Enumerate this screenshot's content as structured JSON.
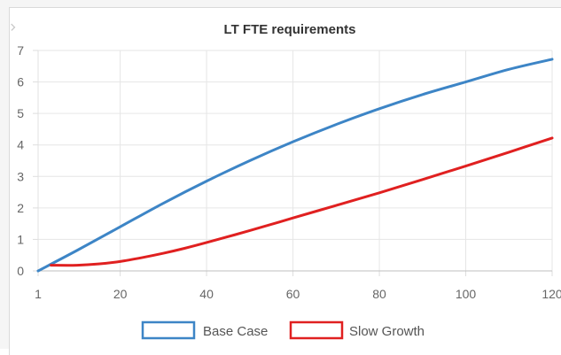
{
  "chart_data": {
    "type": "line",
    "title": "LT FTE requirements",
    "xlabel": "",
    "ylabel": "",
    "xlim": [
      1,
      120
    ],
    "ylim": [
      0,
      7
    ],
    "x_ticks": [
      "1",
      "20",
      "40",
      "60",
      "80",
      "100",
      "120"
    ],
    "y_ticks": [
      "0",
      "1",
      "2",
      "3",
      "4",
      "5",
      "6",
      "7"
    ],
    "grid": true,
    "legend_position": "bottom",
    "series": [
      {
        "name": "Base Case",
        "color": "#3d85c6",
        "x": [
          1,
          10,
          20,
          30,
          40,
          50,
          60,
          70,
          80,
          90,
          100,
          110,
          120
        ],
        "y": [
          0.0,
          0.65,
          1.4,
          2.15,
          2.85,
          3.5,
          4.1,
          4.65,
          5.15,
          5.6,
          6.0,
          6.4,
          6.72
        ]
      },
      {
        "name": "Slow Growth",
        "color": "#e02020",
        "x": [
          4,
          10,
          15,
          20,
          25,
          30,
          35,
          40,
          50,
          60,
          70,
          80,
          90,
          100,
          110,
          120
        ],
        "y": [
          0.18,
          0.18,
          0.22,
          0.3,
          0.42,
          0.56,
          0.72,
          0.9,
          1.28,
          1.68,
          2.08,
          2.48,
          2.9,
          3.33,
          3.77,
          4.22
        ]
      }
    ]
  }
}
